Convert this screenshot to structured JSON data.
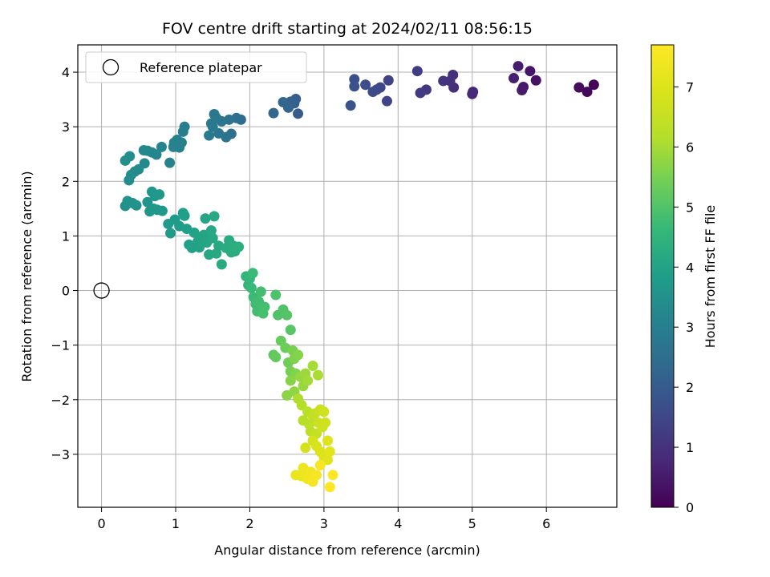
{
  "chart_data": {
    "type": "scatter",
    "title": "FOV centre drift starting at 2024/02/11 08:56:15",
    "xlabel": "Angular distance from reference (arcmin)",
    "ylabel": "Rotation from reference (arcmin)",
    "xlim": [
      -0.32,
      6.95
    ],
    "ylim": [
      -3.97,
      4.5
    ],
    "xticks": [
      0,
      1,
      2,
      3,
      4,
      5,
      6
    ],
    "yticks": [
      -3,
      -2,
      -1,
      0,
      1,
      2,
      3,
      4
    ],
    "grid": true,
    "legend": {
      "position": "top-left",
      "entries": [
        "Reference platepar"
      ]
    },
    "reference_point": {
      "x": 0,
      "y": 0,
      "label": "Reference platepar"
    },
    "colorbar": {
      "label": "Hours from first FF file",
      "range": [
        0,
        7.7
      ],
      "ticks": [
        0,
        1,
        2,
        3,
        4,
        5,
        6,
        7
      ],
      "colormap": "viridis"
    },
    "points": [
      {
        "x": 6.64,
        "y": 3.77,
        "c": 0.05
      },
      {
        "x": 6.55,
        "y": 3.64,
        "c": 0.12
      },
      {
        "x": 6.44,
        "y": 3.72,
        "c": 0.2
      },
      {
        "x": 5.86,
        "y": 3.85,
        "c": 0.35
      },
      {
        "x": 5.78,
        "y": 4.02,
        "c": 0.4
      },
      {
        "x": 5.69,
        "y": 3.73,
        "c": 0.45
      },
      {
        "x": 5.67,
        "y": 3.67,
        "c": 0.48
      },
      {
        "x": 5.62,
        "y": 4.11,
        "c": 0.55
      },
      {
        "x": 5.56,
        "y": 3.89,
        "c": 0.6
      },
      {
        "x": 5.01,
        "y": 3.64,
        "c": 0.75
      },
      {
        "x": 5.0,
        "y": 3.6,
        "c": 0.8
      },
      {
        "x": 4.75,
        "y": 3.72,
        "c": 0.9
      },
      {
        "x": 4.74,
        "y": 3.95,
        "c": 0.95
      },
      {
        "x": 4.7,
        "y": 3.84,
        "c": 1.0
      },
      {
        "x": 4.61,
        "y": 3.84,
        "c": 1.05
      },
      {
        "x": 4.38,
        "y": 3.68,
        "c": 1.15
      },
      {
        "x": 4.3,
        "y": 3.62,
        "c": 1.2
      },
      {
        "x": 4.26,
        "y": 4.02,
        "c": 1.25
      },
      {
        "x": 3.87,
        "y": 3.85,
        "c": 1.4
      },
      {
        "x": 3.85,
        "y": 3.47,
        "c": 1.45
      },
      {
        "x": 3.76,
        "y": 3.72,
        "c": 1.5
      },
      {
        "x": 3.71,
        "y": 3.68,
        "c": 1.55
      },
      {
        "x": 3.66,
        "y": 3.64,
        "c": 1.6
      },
      {
        "x": 3.56,
        "y": 3.77,
        "c": 1.65
      },
      {
        "x": 3.41,
        "y": 3.87,
        "c": 1.7
      },
      {
        "x": 3.41,
        "y": 3.74,
        "c": 1.75
      },
      {
        "x": 3.36,
        "y": 3.39,
        "c": 1.8
      },
      {
        "x": 2.65,
        "y": 3.24,
        "c": 2.0
      },
      {
        "x": 2.62,
        "y": 3.51,
        "c": 2.05
      },
      {
        "x": 2.6,
        "y": 3.43,
        "c": 2.1
      },
      {
        "x": 2.55,
        "y": 3.46,
        "c": 2.15
      },
      {
        "x": 2.52,
        "y": 3.35,
        "c": 2.2
      },
      {
        "x": 2.45,
        "y": 3.45,
        "c": 2.25
      },
      {
        "x": 2.32,
        "y": 3.25,
        "c": 2.3
      },
      {
        "x": 1.88,
        "y": 3.13,
        "c": 2.45
      },
      {
        "x": 1.82,
        "y": 3.16,
        "c": 2.5
      },
      {
        "x": 1.75,
        "y": 2.87,
        "c": 2.55
      },
      {
        "x": 1.72,
        "y": 3.13,
        "c": 2.6
      },
      {
        "x": 1.68,
        "y": 2.81,
        "c": 2.65
      },
      {
        "x": 1.62,
        "y": 3.1,
        "c": 2.7
      },
      {
        "x": 1.58,
        "y": 2.88,
        "c": 2.72
      },
      {
        "x": 1.55,
        "y": 3.16,
        "c": 2.75
      },
      {
        "x": 1.52,
        "y": 3.23,
        "c": 2.78
      },
      {
        "x": 1.5,
        "y": 3.0,
        "c": 2.8
      },
      {
        "x": 1.45,
        "y": 2.84,
        "c": 2.83
      },
      {
        "x": 1.48,
        "y": 3.06,
        "c": 2.85
      },
      {
        "x": 1.12,
        "y": 3.0,
        "c": 2.95
      },
      {
        "x": 1.1,
        "y": 2.91,
        "c": 2.98
      },
      {
        "x": 1.08,
        "y": 2.71,
        "c": 3.0
      },
      {
        "x": 1.05,
        "y": 2.62,
        "c": 3.02
      },
      {
        "x": 1.02,
        "y": 2.76,
        "c": 3.05
      },
      {
        "x": 0.98,
        "y": 2.71,
        "c": 3.08
      },
      {
        "x": 0.97,
        "y": 2.63,
        "c": 3.1
      },
      {
        "x": 0.92,
        "y": 2.34,
        "c": 3.12
      },
      {
        "x": 0.81,
        "y": 2.63,
        "c": 3.15
      },
      {
        "x": 0.74,
        "y": 2.49,
        "c": 3.18
      },
      {
        "x": 0.68,
        "y": 2.53,
        "c": 3.2
      },
      {
        "x": 0.62,
        "y": 2.56,
        "c": 3.22
      },
      {
        "x": 0.57,
        "y": 2.57,
        "c": 3.25
      },
      {
        "x": 0.58,
        "y": 2.33,
        "c": 3.27
      },
      {
        "x": 0.5,
        "y": 2.22,
        "c": 3.3
      },
      {
        "x": 0.45,
        "y": 2.18,
        "c": 3.32
      },
      {
        "x": 0.4,
        "y": 2.12,
        "c": 3.35
      },
      {
        "x": 0.37,
        "y": 2.02,
        "c": 3.37
      },
      {
        "x": 0.38,
        "y": 2.46,
        "c": 3.4
      },
      {
        "x": 0.32,
        "y": 2.38,
        "c": 3.42
      },
      {
        "x": 0.32,
        "y": 1.55,
        "c": 3.5
      },
      {
        "x": 0.35,
        "y": 1.64,
        "c": 3.52
      },
      {
        "x": 0.42,
        "y": 1.6,
        "c": 3.54
      },
      {
        "x": 0.47,
        "y": 1.56,
        "c": 3.56
      },
      {
        "x": 0.62,
        "y": 1.62,
        "c": 3.58
      },
      {
        "x": 0.65,
        "y": 1.45,
        "c": 3.6
      },
      {
        "x": 0.68,
        "y": 1.81,
        "c": 3.62
      },
      {
        "x": 0.72,
        "y": 1.73,
        "c": 3.64
      },
      {
        "x": 0.75,
        "y": 1.48,
        "c": 3.66
      },
      {
        "x": 0.78,
        "y": 1.76,
        "c": 3.68
      },
      {
        "x": 0.82,
        "y": 1.46,
        "c": 3.7
      },
      {
        "x": 0.7,
        "y": 1.5,
        "c": 3.72
      },
      {
        "x": 0.9,
        "y": 1.22,
        "c": 3.75
      },
      {
        "x": 0.93,
        "y": 1.05,
        "c": 3.78
      },
      {
        "x": 0.99,
        "y": 1.3,
        "c": 3.8
      },
      {
        "x": 1.05,
        "y": 1.18,
        "c": 3.82
      },
      {
        "x": 1.1,
        "y": 1.42,
        "c": 3.85
      },
      {
        "x": 1.12,
        "y": 1.37,
        "c": 3.87
      },
      {
        "x": 1.15,
        "y": 1.13,
        "c": 3.9
      },
      {
        "x": 1.18,
        "y": 0.84,
        "c": 3.92
      },
      {
        "x": 1.22,
        "y": 0.78,
        "c": 3.94
      },
      {
        "x": 1.25,
        "y": 1.06,
        "c": 3.96
      },
      {
        "x": 1.3,
        "y": 0.9,
        "c": 3.98
      },
      {
        "x": 1.32,
        "y": 0.79,
        "c": 4.0
      },
      {
        "x": 1.35,
        "y": 0.95,
        "c": 4.02
      },
      {
        "x": 1.38,
        "y": 1.02,
        "c": 4.04
      },
      {
        "x": 1.4,
        "y": 1.32,
        "c": 4.06
      },
      {
        "x": 1.42,
        "y": 0.88,
        "c": 4.08
      },
      {
        "x": 1.45,
        "y": 0.66,
        "c": 4.1
      },
      {
        "x": 1.48,
        "y": 1.1,
        "c": 4.12
      },
      {
        "x": 1.5,
        "y": 0.96,
        "c": 4.14
      },
      {
        "x": 1.52,
        "y": 1.36,
        "c": 4.16
      },
      {
        "x": 1.55,
        "y": 0.68,
        "c": 4.18
      },
      {
        "x": 1.58,
        "y": 0.82,
        "c": 4.2
      },
      {
        "x": 1.62,
        "y": 0.48,
        "c": 4.22
      },
      {
        "x": 1.68,
        "y": 0.78,
        "c": 4.24
      },
      {
        "x": 1.72,
        "y": 0.92,
        "c": 4.26
      },
      {
        "x": 1.75,
        "y": 0.7,
        "c": 4.28
      },
      {
        "x": 1.78,
        "y": 0.82,
        "c": 4.3
      },
      {
        "x": 1.8,
        "y": 0.72,
        "c": 4.32
      },
      {
        "x": 1.85,
        "y": 0.8,
        "c": 4.34
      },
      {
        "x": 1.95,
        "y": 0.26,
        "c": 4.5
      },
      {
        "x": 1.98,
        "y": 0.1,
        "c": 4.55
      },
      {
        "x": 2.0,
        "y": 0.22,
        "c": 4.6
      },
      {
        "x": 2.02,
        "y": 0.05,
        "c": 4.65
      },
      {
        "x": 2.04,
        "y": 0.32,
        "c": 4.7
      },
      {
        "x": 2.05,
        "y": -0.12,
        "c": 4.72
      },
      {
        "x": 2.08,
        "y": -0.25,
        "c": 4.75
      },
      {
        "x": 2.1,
        "y": -0.38,
        "c": 4.78
      },
      {
        "x": 2.12,
        "y": -0.2,
        "c": 4.8
      },
      {
        "x": 2.15,
        "y": -0.02,
        "c": 4.82
      },
      {
        "x": 2.2,
        "y": -0.3,
        "c": 4.85
      },
      {
        "x": 2.18,
        "y": -0.42,
        "c": 4.88
      },
      {
        "x": 2.35,
        "y": -0.08,
        "c": 4.95
      },
      {
        "x": 2.38,
        "y": -0.45,
        "c": 4.98
      },
      {
        "x": 2.45,
        "y": -0.35,
        "c": 5.0
      },
      {
        "x": 2.5,
        "y": -0.45,
        "c": 5.05
      },
      {
        "x": 2.55,
        "y": -0.72,
        "c": 5.1
      },
      {
        "x": 2.32,
        "y": -1.18,
        "c": 5.2
      },
      {
        "x": 2.35,
        "y": -1.22,
        "c": 5.25
      },
      {
        "x": 2.42,
        "y": -0.92,
        "c": 5.3
      },
      {
        "x": 2.48,
        "y": -1.05,
        "c": 5.35
      },
      {
        "x": 2.52,
        "y": -1.32,
        "c": 5.4
      },
      {
        "x": 2.55,
        "y": -1.48,
        "c": 5.45
      },
      {
        "x": 2.58,
        "y": -1.1,
        "c": 5.5
      },
      {
        "x": 2.6,
        "y": -1.25,
        "c": 5.55
      },
      {
        "x": 2.62,
        "y": -1.52,
        "c": 5.6
      },
      {
        "x": 2.65,
        "y": -1.18,
        "c": 5.62
      },
      {
        "x": 2.55,
        "y": -1.65,
        "c": 5.65
      },
      {
        "x": 2.5,
        "y": -1.92,
        "c": 5.7
      },
      {
        "x": 2.6,
        "y": -1.85,
        "c": 5.75
      },
      {
        "x": 2.68,
        "y": -1.58,
        "c": 5.8
      },
      {
        "x": 2.72,
        "y": -1.75,
        "c": 5.85
      },
      {
        "x": 2.75,
        "y": -1.52,
        "c": 5.9
      },
      {
        "x": 2.78,
        "y": -1.65,
        "c": 5.95
      },
      {
        "x": 2.85,
        "y": -1.38,
        "c": 6.0
      },
      {
        "x": 2.92,
        "y": -1.55,
        "c": 6.05
      },
      {
        "x": 2.65,
        "y": -1.98,
        "c": 6.1
      },
      {
        "x": 2.7,
        "y": -2.1,
        "c": 6.15
      },
      {
        "x": 2.72,
        "y": -2.38,
        "c": 6.2
      },
      {
        "x": 2.78,
        "y": -2.22,
        "c": 6.25
      },
      {
        "x": 2.8,
        "y": -2.45,
        "c": 6.3
      },
      {
        "x": 2.82,
        "y": -2.58,
        "c": 6.35
      },
      {
        "x": 2.85,
        "y": -2.3,
        "c": 6.4
      },
      {
        "x": 2.88,
        "y": -2.25,
        "c": 6.45
      },
      {
        "x": 2.9,
        "y": -2.62,
        "c": 6.5
      },
      {
        "x": 2.92,
        "y": -2.42,
        "c": 6.55
      },
      {
        "x": 2.95,
        "y": -2.18,
        "c": 6.6
      },
      {
        "x": 2.98,
        "y": -2.5,
        "c": 6.65
      },
      {
        "x": 3.0,
        "y": -2.22,
        "c": 6.7
      },
      {
        "x": 3.02,
        "y": -2.42,
        "c": 6.72
      },
      {
        "x": 2.75,
        "y": -2.88,
        "c": 6.8
      },
      {
        "x": 2.85,
        "y": -2.75,
        "c": 6.85
      },
      {
        "x": 2.9,
        "y": -2.85,
        "c": 6.9
      },
      {
        "x": 2.95,
        "y": -2.95,
        "c": 6.95
      },
      {
        "x": 3.0,
        "y": -3.05,
        "c": 7.0
      },
      {
        "x": 3.05,
        "y": -2.75,
        "c": 7.02
      },
      {
        "x": 3.05,
        "y": -3.1,
        "c": 7.05
      },
      {
        "x": 3.08,
        "y": -2.95,
        "c": 7.1
      },
      {
        "x": 2.62,
        "y": -3.38,
        "c": 7.25
      },
      {
        "x": 2.7,
        "y": -3.4,
        "c": 7.3
      },
      {
        "x": 2.72,
        "y": -3.25,
        "c": 7.35
      },
      {
        "x": 2.78,
        "y": -3.45,
        "c": 7.4
      },
      {
        "x": 2.82,
        "y": -3.32,
        "c": 7.45
      },
      {
        "x": 2.85,
        "y": -3.5,
        "c": 7.5
      },
      {
        "x": 2.9,
        "y": -3.38,
        "c": 7.55
      },
      {
        "x": 2.95,
        "y": -3.2,
        "c": 7.6
      },
      {
        "x": 3.08,
        "y": -3.6,
        "c": 7.65
      },
      {
        "x": 3.12,
        "y": -3.38,
        "c": 7.7
      }
    ]
  }
}
